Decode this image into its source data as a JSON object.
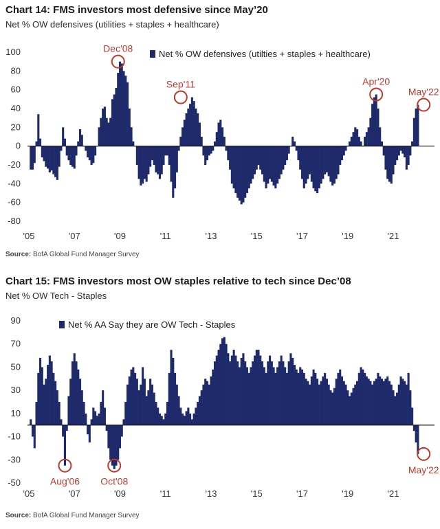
{
  "charts_text": [
    {
      "title": "Chart 14: FMS investors most defensive since May’20",
      "subtitle": "Net % OW defensives (utilities + staples + healthcare)",
      "source_label": "Source:",
      "source_text": "BofA Global Fund Manager Survey"
    },
    {
      "title": "Chart 15: FMS investors most OW staples relative to tech since Dec’08",
      "subtitle": "Net % OW Tech - Staples",
      "source_label": "Source:",
      "source_text": "BofA Global Fund Manager Survey"
    }
  ],
  "colors": {
    "bar": "#1f2a6b",
    "annotation": "#c0392b",
    "axis": "#111111"
  },
  "chart_data": [
    {
      "type": "bar",
      "title": "Chart 14: FMS investors most defensive since May’20",
      "subtitle": "Net % OW defensives (utilities + staples + healthcare)",
      "legend": "Net % OW defensives (utilties + staples + healthcare)",
      "legend_position": "top-center",
      "ylim": [
        -80,
        100
      ],
      "yticks": [
        100,
        80,
        60,
        40,
        20,
        0,
        -20,
        -40,
        -60,
        -80
      ],
      "xlim": [
        2005.0,
        2022.75
      ],
      "xticks": [
        {
          "x": 2005,
          "label": "'05"
        },
        {
          "x": 2007,
          "label": "'07"
        },
        {
          "x": 2009,
          "label": "'09"
        },
        {
          "x": 2011,
          "label": "'11"
        },
        {
          "x": 2013,
          "label": "'13"
        },
        {
          "x": 2015,
          "label": "'15"
        },
        {
          "x": 2017,
          "label": "'17"
        },
        {
          "x": 2019,
          "label": "'19"
        },
        {
          "x": 2021,
          "label": "'21"
        }
      ],
      "series": [
        {
          "x_start": 2005.083,
          "step_months": 1,
          "values": [
            -25,
            -25,
            -18,
            5,
            34,
            8,
            -12,
            -16,
            -22,
            -24,
            -28,
            -26,
            -30,
            -33,
            -36,
            -22,
            -5,
            20,
            8,
            -10,
            -15,
            -20,
            -22,
            -24,
            -10,
            5,
            18,
            12,
            0,
            -5,
            -12,
            -15,
            -20,
            -18,
            -10,
            0,
            20,
            30,
            40,
            42,
            30,
            25,
            30,
            50,
            55,
            62,
            78,
            90,
            88,
            80,
            75,
            68,
            40,
            20,
            5,
            0,
            -20,
            -35,
            -42,
            -40,
            -35,
            -38,
            -30,
            -22,
            -15,
            -20,
            -28,
            -30,
            -35,
            -30,
            -20,
            -10,
            -10,
            -20,
            -38,
            -55,
            -45,
            -28,
            -5,
            10,
            20,
            28,
            35,
            40,
            45,
            52,
            48,
            40,
            35,
            25,
            10,
            -10,
            -20,
            -15,
            -10,
            -8,
            -5,
            5,
            15,
            25,
            28,
            20,
            10,
            -5,
            -15,
            -25,
            -40,
            -45,
            -50,
            -55,
            -58,
            -62,
            -60,
            -55,
            -50,
            -45,
            -40,
            -35,
            -30,
            -25,
            -20,
            -25,
            -30,
            -38,
            -45,
            -40,
            -35,
            -38,
            -42,
            -45,
            -40,
            -35,
            -30,
            -25,
            -20,
            -15,
            -8,
            0,
            10,
            5,
            -5,
            -15,
            -25,
            -35,
            -45,
            -40,
            -35,
            -30,
            -38,
            -45,
            -48,
            -50,
            -45,
            -40,
            -35,
            -30,
            -28,
            -32,
            -38,
            -42,
            -40,
            -35,
            -30,
            -20,
            -15,
            -10,
            -5,
            0,
            5,
            10,
            15,
            20,
            18,
            10,
            5,
            0,
            10,
            15,
            20,
            30,
            45,
            52,
            55,
            40,
            20,
            5,
            -10,
            -25,
            -35,
            -38,
            -40,
            -30,
            -20,
            -15,
            -10,
            -5,
            -8,
            -12,
            -25,
            -20,
            -10,
            5,
            30,
            40,
            44
          ]
        }
      ],
      "annotations": [
        {
          "label": "Dec'08",
          "x": 2008.917,
          "y": 90
        },
        {
          "label": "Sep'11",
          "x": 2011.667,
          "y": 52
        },
        {
          "label": "Apr'20",
          "x": 2020.25,
          "y": 55
        },
        {
          "label": "May'22",
          "x": 2022.333,
          "y": 44
        }
      ]
    },
    {
      "type": "bar",
      "title": "Chart 15: FMS investors most OW staples relative to tech since Dec’08",
      "subtitle": "Net % OW Tech - Staples",
      "legend": "Net % AA Say they are OW Tech - Staples",
      "legend_position": "top-left",
      "ylim": [
        -50,
        90
      ],
      "yticks": [
        90,
        70,
        50,
        30,
        10,
        -10,
        -30,
        -50
      ],
      "xlim": [
        2005.0,
        2022.75
      ],
      "xticks": [
        {
          "x": 2005,
          "label": "'05"
        },
        {
          "x": 2007,
          "label": "'07"
        },
        {
          "x": 2009,
          "label": "'09"
        },
        {
          "x": 2011,
          "label": "'11"
        },
        {
          "x": 2013,
          "label": "'13"
        },
        {
          "x": 2015,
          "label": "'15"
        },
        {
          "x": 2017,
          "label": "'17"
        },
        {
          "x": 2019,
          "label": "'19"
        },
        {
          "x": 2021,
          "label": "'21"
        }
      ],
      "series": [
        {
          "x_start": 2005.083,
          "step_months": 1,
          "values": [
            5,
            -10,
            -20,
            20,
            45,
            58,
            50,
            35,
            40,
            52,
            60,
            55,
            45,
            38,
            30,
            20,
            5,
            -10,
            -35,
            -5,
            25,
            40,
            55,
            62,
            55,
            48,
            40,
            30,
            20,
            10,
            -8,
            -15,
            5,
            15,
            12,
            8,
            10,
            20,
            30,
            15,
            -5,
            -20,
            -30,
            -35,
            -38,
            -35,
            -30,
            -20,
            -10,
            5,
            20,
            35,
            42,
            48,
            50,
            45,
            40,
            30,
            35,
            50,
            40,
            25,
            30,
            40,
            35,
            28,
            20,
            15,
            10,
            8,
            5,
            10,
            20,
            45,
            65,
            58,
            45,
            35,
            25,
            15,
            10,
            8,
            12,
            15,
            10,
            5,
            10,
            15,
            20,
            25,
            30,
            35,
            40,
            38,
            35,
            42,
            48,
            55,
            60,
            65,
            70,
            75,
            76,
            70,
            62,
            55,
            60,
            65,
            60,
            55,
            50,
            58,
            62,
            55,
            50,
            45,
            50,
            55,
            60,
            65,
            65,
            60,
            55,
            50,
            45,
            55,
            60,
            55,
            50,
            45,
            50,
            55,
            60,
            55,
            50,
            45,
            55,
            62,
            58,
            52,
            48,
            45,
            50,
            48,
            45,
            40,
            38,
            35,
            42,
            48,
            45,
            40,
            35,
            38,
            42,
            45,
            40,
            35,
            30,
            28,
            32,
            40,
            45,
            48,
            42,
            38,
            35,
            30,
            25,
            28,
            32,
            35,
            38,
            45,
            50,
            48,
            45,
            42,
            40,
            38,
            35,
            38,
            40,
            45,
            42,
            40,
            38,
            40,
            42,
            38,
            35,
            30,
            25,
            28,
            35,
            42,
            40,
            38,
            35,
            45,
            30,
            15,
            -5,
            -15,
            -25
          ]
        }
      ],
      "annotations": [
        {
          "label": "Aug'06",
          "x": 2006.583,
          "y": -35
        },
        {
          "label": "Oct'08",
          "x": 2008.75,
          "y": -35
        },
        {
          "label": "May'22",
          "x": 2022.333,
          "y": -25
        }
      ]
    }
  ]
}
